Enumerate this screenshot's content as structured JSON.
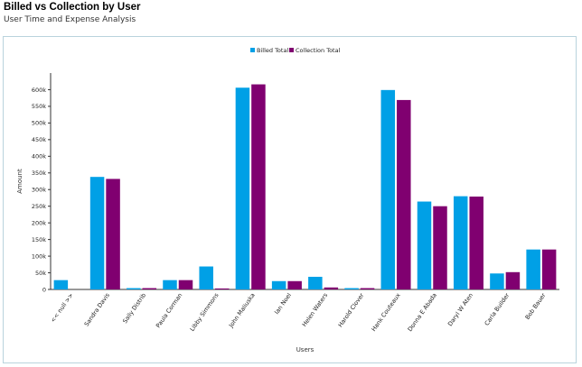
{
  "header": {
    "title": "Billed vs Collection by User",
    "subtitle": "User Time and Expense Analysis"
  },
  "colors": {
    "billed": "#00a0e6",
    "collection": "#800070",
    "axis": "#333333",
    "panel_border": "#b9d3dd"
  },
  "chart_data": {
    "type": "bar",
    "xlabel": "Users",
    "ylabel": "Amount",
    "ylim": [
      0,
      650000
    ],
    "yticks": [
      0,
      50000,
      100000,
      150000,
      200000,
      250000,
      300000,
      350000,
      400000,
      450000,
      500000,
      550000,
      600000
    ],
    "ytick_labels": [
      "0",
      "50k",
      "100k",
      "150k",
      "200k",
      "250k",
      "300k",
      "350k",
      "400k",
      "450k",
      "500k",
      "550k",
      "600k"
    ],
    "grid": false,
    "legend_position": "top-center",
    "categories": [
      "<< null >>",
      "Sandra Davis",
      "Sally Distrib",
      "Paula Corman",
      "Libby Simmons",
      "John Maliuska",
      "Ian Noel",
      "Helen Waters",
      "Harold Clover",
      "Hank Couteaux",
      "Donna E Abada",
      "Daryl W Aten",
      "Carla Builder",
      "Bob Bauer"
    ],
    "series": [
      {
        "name": "Billed Total",
        "values": [
          28000,
          338000,
          4000,
          28000,
          69000,
          606000,
          25000,
          38000,
          4000,
          599000,
          264000,
          280000,
          48000,
          120000
        ]
      },
      {
        "name": "Collection Total",
        "values": [
          0,
          332000,
          4000,
          28000,
          3000,
          616000,
          25000,
          6000,
          4000,
          569000,
          250000,
          279000,
          52000,
          120000
        ]
      }
    ]
  }
}
